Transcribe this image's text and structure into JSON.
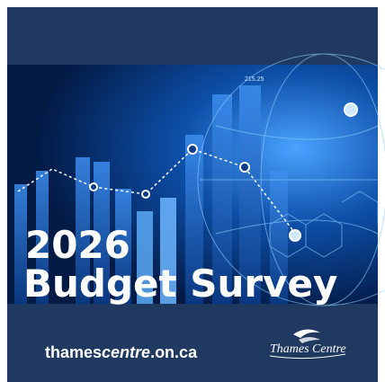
{
  "graphic": {
    "ticker": "215.25",
    "year": "2026",
    "title": "Budget Survey",
    "website": {
      "prefix": "thames",
      "emphasis": "centre",
      "suffix": ".on.ca"
    },
    "logo": "Thames Centre"
  }
}
